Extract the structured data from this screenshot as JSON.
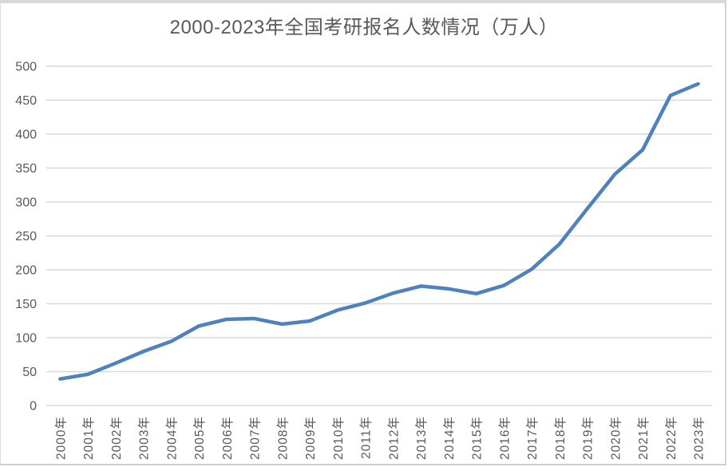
{
  "chart_data": {
    "type": "line",
    "title": "2000-2023年全国考研报名人数情况（万人）",
    "categories": [
      "2000年",
      "2001年",
      "2002年",
      "2003年",
      "2004年",
      "2005年",
      "2006年",
      "2007年",
      "2008年",
      "2009年",
      "2010年",
      "2011年",
      "2012年",
      "2013年",
      "2014年",
      "2015年",
      "2016年",
      "2017年",
      "2018年",
      "2019年",
      "2020年",
      "2021年",
      "2022年",
      "2023年"
    ],
    "values": [
      39.2,
      46,
      62.4,
      79.7,
      94.5,
      117.2,
      127.1,
      128.2,
      120,
      124.6,
      140.6,
      151.1,
      165.6,
      176,
      172,
      164.9,
      177,
      201,
      238,
      290,
      341,
      377,
      457,
      474
    ],
    "xlabel": "",
    "ylabel": "",
    "ylim": [
      0,
      500
    ],
    "yticks": [
      0,
      50,
      100,
      150,
      200,
      250,
      300,
      350,
      400,
      450,
      500
    ],
    "grid": true,
    "legend_position": "none",
    "colors": {
      "line": "#4E81BD",
      "grid": "#D9D9D9",
      "tick_label": "#595959",
      "title": "#595959",
      "border": "#D8D8D8"
    }
  }
}
